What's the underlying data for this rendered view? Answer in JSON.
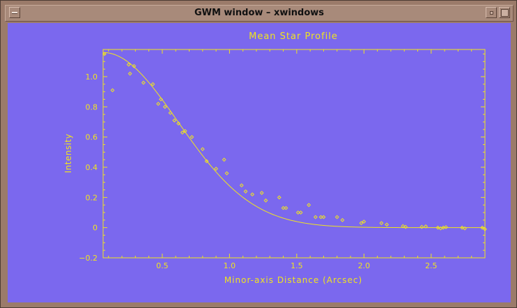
{
  "window": {
    "title": "GWM window – xwindows"
  },
  "colors": {
    "plot_bg": "#7b68ee",
    "plot_fg": "#f0e41f",
    "frame": "#9b7b6a"
  },
  "chart_data": {
    "type": "scatter",
    "title": "Mean Star Profile",
    "xlabel": "Minor-axis Distance (Arcsec)",
    "ylabel": "Intensity",
    "xlim": [
      0.06,
      2.9
    ],
    "ylim": [
      -0.2,
      1.18
    ],
    "x_ticks": [
      0.5,
      1.0,
      1.5,
      2.0,
      2.5
    ],
    "x_tick_labels": [
      "0.5",
      "1.0",
      "1.5",
      "2.0",
      "2.5"
    ],
    "y_ticks": [
      -0.2,
      0,
      0.2,
      0.4,
      0.6,
      0.8,
      1.0
    ],
    "y_tick_labels": [
      "−0.2",
      "0",
      "0.2",
      "0.4",
      "0.6",
      "0.8",
      "1.0"
    ],
    "grid": false,
    "series": [
      {
        "mode": "markers",
        "marker": "diamond",
        "points": [
          [
            0.07,
            1.15
          ],
          [
            0.13,
            0.91
          ],
          [
            0.25,
            1.08
          ],
          [
            0.26,
            1.02
          ],
          [
            0.29,
            1.07
          ],
          [
            0.36,
            0.96
          ],
          [
            0.43,
            0.95
          ],
          [
            0.47,
            0.82
          ],
          [
            0.49,
            0.85
          ],
          [
            0.52,
            0.8
          ],
          [
            0.56,
            0.76
          ],
          [
            0.59,
            0.71
          ],
          [
            0.62,
            0.69
          ],
          [
            0.65,
            0.63
          ],
          [
            0.67,
            0.64
          ],
          [
            0.72,
            0.6
          ],
          [
            0.8,
            0.52
          ],
          [
            0.83,
            0.44
          ],
          [
            0.9,
            0.39
          ],
          [
            0.96,
            0.45
          ],
          [
            0.98,
            0.36
          ],
          [
            1.09,
            0.28
          ],
          [
            1.12,
            0.24
          ],
          [
            1.17,
            0.22
          ],
          [
            1.24,
            0.23
          ],
          [
            1.27,
            0.18
          ],
          [
            1.37,
            0.2
          ],
          [
            1.4,
            0.13
          ],
          [
            1.42,
            0.13
          ],
          [
            1.51,
            0.1
          ],
          [
            1.53,
            0.1
          ],
          [
            1.59,
            0.15
          ],
          [
            1.64,
            0.07
          ],
          [
            1.68,
            0.07
          ],
          [
            1.7,
            0.07
          ],
          [
            1.8,
            0.07
          ],
          [
            1.84,
            0.05
          ],
          [
            1.98,
            0.03
          ],
          [
            2.0,
            0.04
          ],
          [
            2.13,
            0.03
          ],
          [
            2.17,
            0.02
          ],
          [
            2.29,
            0.01
          ],
          [
            2.31,
            0.005
          ],
          [
            2.43,
            0.005
          ],
          [
            2.46,
            0.008
          ],
          [
            2.55,
            0.0
          ],
          [
            2.57,
            -0.005
          ],
          [
            2.59,
            0.0
          ],
          [
            2.61,
            0.003
          ],
          [
            2.73,
            0.0
          ],
          [
            2.75,
            -0.005
          ],
          [
            2.88,
            0.0
          ],
          [
            2.9,
            -0.01
          ]
        ]
      },
      {
        "mode": "line",
        "fit": "gaussian",
        "amplitude": 1.16,
        "center": 0.06,
        "sigma": 0.555
      }
    ]
  }
}
